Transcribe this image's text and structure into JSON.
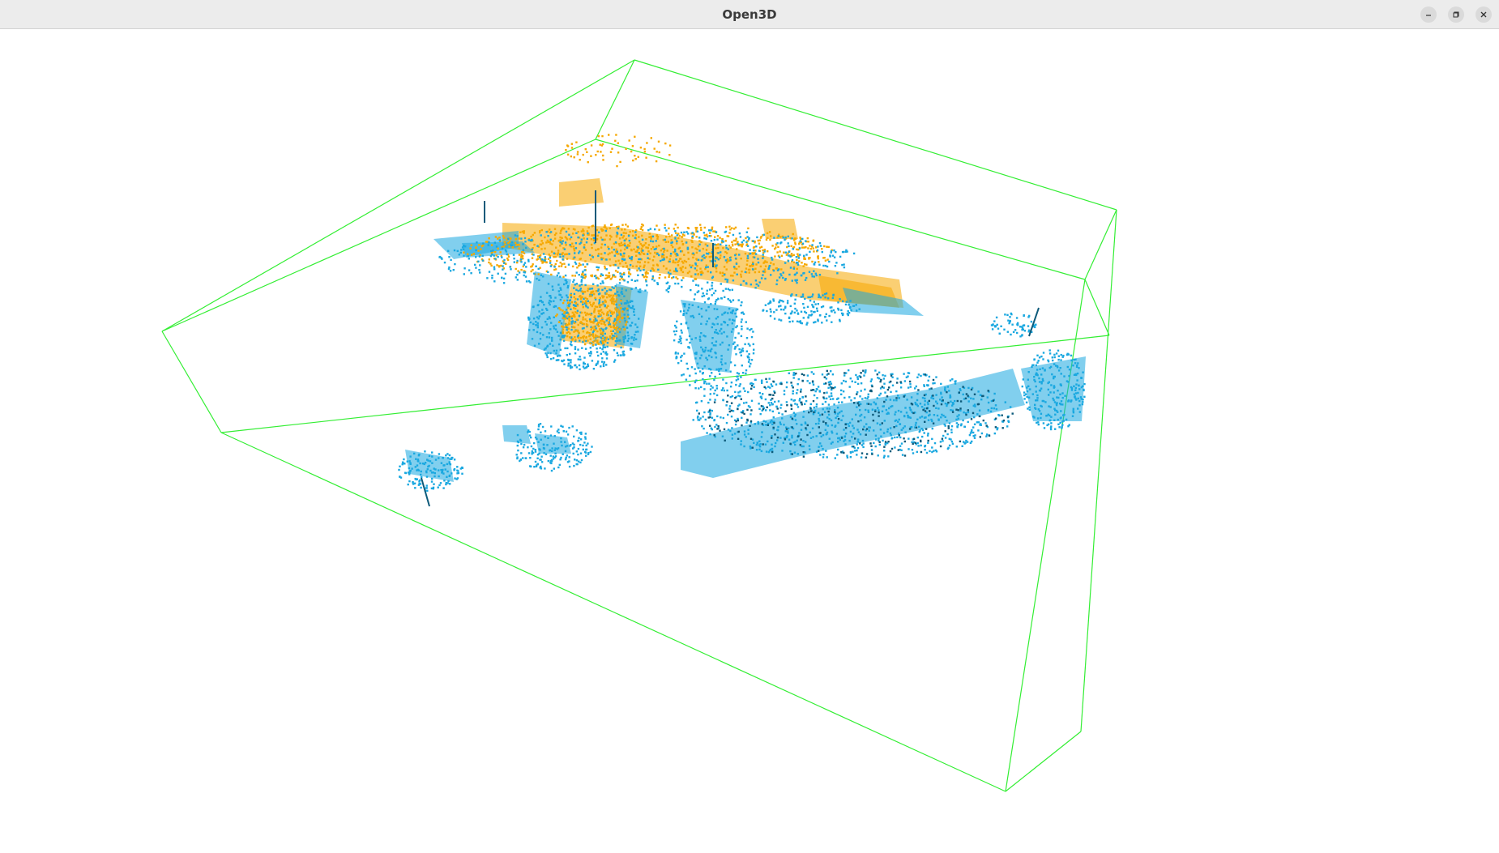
{
  "window": {
    "title": "Open3D",
    "controls": {
      "minimize_icon": "minimize-icon",
      "maximize_icon": "restore-icon",
      "close_icon": "close-icon"
    }
  },
  "scene": {
    "background": "#ffffff",
    "bounding_box_color": "#33ee33",
    "point_colors": {
      "source": "#f5a800",
      "target": "#1aa8e0",
      "shadow": "#0d5a7a"
    }
  }
}
